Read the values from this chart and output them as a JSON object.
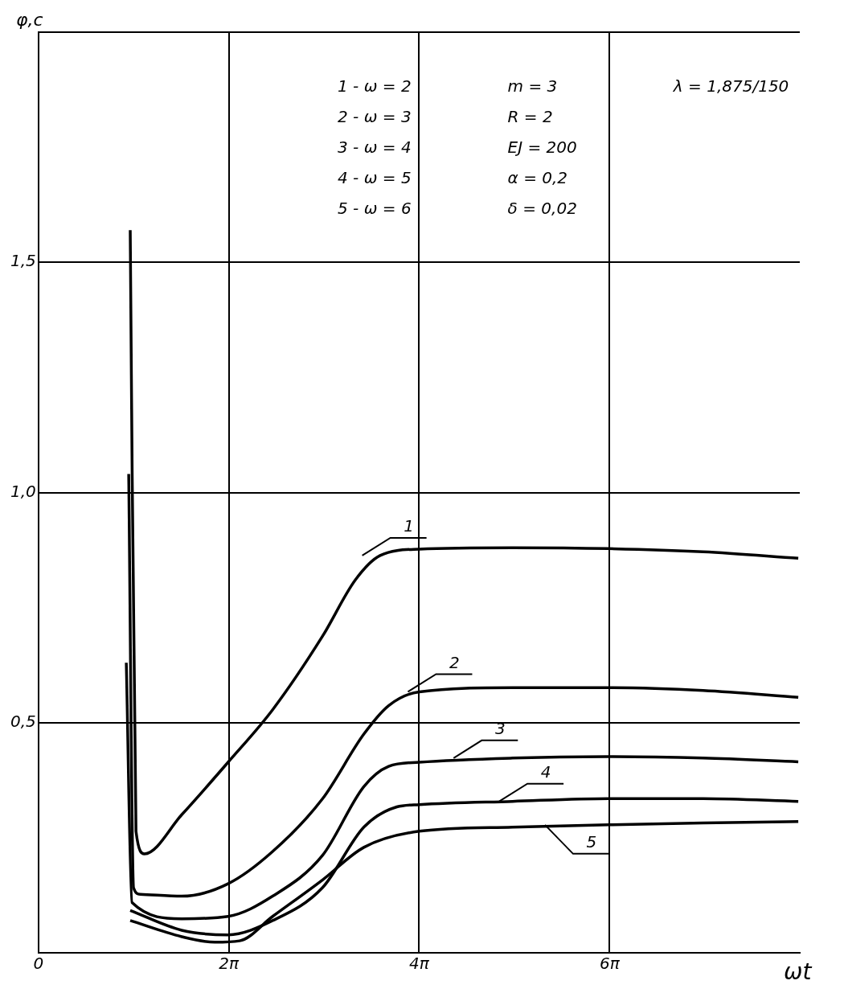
{
  "chart_data": {
    "type": "line",
    "xlabel": "ωt",
    "ylabel": "φ,c",
    "xlim": [
      0,
      25.13
    ],
    "ylim": [
      0,
      2
    ],
    "xticks": [
      {
        "value": 0,
        "label": "0"
      },
      {
        "value": 6.2832,
        "label": "2π"
      },
      {
        "value": 12.5664,
        "label": "4π"
      },
      {
        "value": 18.8496,
        "label": "6π"
      }
    ],
    "yticks": [
      {
        "value": 0,
        "label": null
      },
      {
        "value": 0.5,
        "label": "0,5"
      },
      {
        "value": 1.0,
        "label": "1,0"
      },
      {
        "value": 1.5,
        "label": "1,5"
      },
      {
        "value": 2.0,
        "label": null
      }
    ],
    "grid": true,
    "legend": false,
    "marker": "none",
    "line_style": "solid",
    "series": [
      {
        "name": "1",
        "color": "#000000",
        "x": [
          3.03,
          3.22,
          3.5,
          4.73,
          6.26,
          7.73,
          9.37,
          10.46,
          11.28,
          12.57,
          15.65,
          18.82,
          21.94,
          25.08
        ],
        "values": [
          1.57,
          0.264,
          0.215,
          0.3,
          0.414,
          0.528,
          0.687,
          0.81,
          0.863,
          0.877,
          0.88,
          0.878,
          0.871,
          0.857
        ]
      },
      {
        "name": "2",
        "color": "#000000",
        "x": [
          2.98,
          3.14,
          3.36,
          4.73,
          6.26,
          7.73,
          9.37,
          10.74,
          11.56,
          12.57,
          15.65,
          18.82,
          21.94,
          25.08
        ],
        "values": [
          1.04,
          0.141,
          0.127,
          0.123,
          0.15,
          0.22,
          0.334,
          0.475,
          0.537,
          0.567,
          0.576,
          0.576,
          0.57,
          0.555
        ]
      },
      {
        "name": "3",
        "color": "#000000",
        "x": [
          2.9,
          3.09,
          4.73,
          6.26,
          7.73,
          9.37,
          10.74,
          11.56,
          12.57,
          15.65,
          18.82,
          21.94,
          25.08
        ],
        "values": [
          0.63,
          0.109,
          0.074,
          0.079,
          0.123,
          0.211,
          0.361,
          0.405,
          0.414,
          0.423,
          0.426,
          0.423,
          0.415
        ]
      },
      {
        "name": "4",
        "color": "#000000",
        "x": [
          3.03,
          4.73,
          6.26,
          7.73,
          9.37,
          10.74,
          11.83,
          12.57,
          15.65,
          18.82,
          21.94,
          25.08
        ],
        "values": [
          0.092,
          0.049,
          0.039,
          0.07,
          0.141,
          0.273,
          0.317,
          0.322,
          0.329,
          0.335,
          0.335,
          0.329
        ]
      },
      {
        "name": "5",
        "color": "#000000",
        "x": [
          3.03,
          4.73,
          5.82,
          6.64,
          7.73,
          9.37,
          10.74,
          12.57,
          15.65,
          18.82,
          21.94,
          25.08
        ],
        "values": [
          0.07,
          0.035,
          0.023,
          0.026,
          0.079,
          0.158,
          0.229,
          0.264,
          0.273,
          0.278,
          0.282,
          0.285
        ]
      }
    ],
    "annotations": [
      "1 - ω = 2",
      "2 - ω = 3",
      "3 - ω = 4",
      "4 - ω = 5",
      "5 - ω = 6",
      "m = 3",
      "R = 2",
      "EJ = 200",
      "α = 0,2",
      "δ = 0,02",
      "λ = 1,875/150"
    ]
  }
}
